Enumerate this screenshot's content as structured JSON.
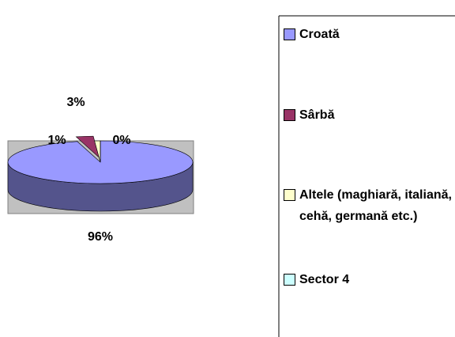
{
  "chart_data": {
    "type": "pie",
    "categories": [
      "Croată",
      "Sârbă",
      "Altele (maghiară, italiană, cehă, germană etc.)",
      "Sector 4"
    ],
    "values": [
      96,
      3,
      1,
      0
    ],
    "value_labels": [
      "96%",
      "3%",
      "1%",
      "0%"
    ],
    "colors": [
      "#9999ff",
      "#993366",
      "#ffffcc",
      "#ccffff"
    ],
    "legend": "right"
  }
}
